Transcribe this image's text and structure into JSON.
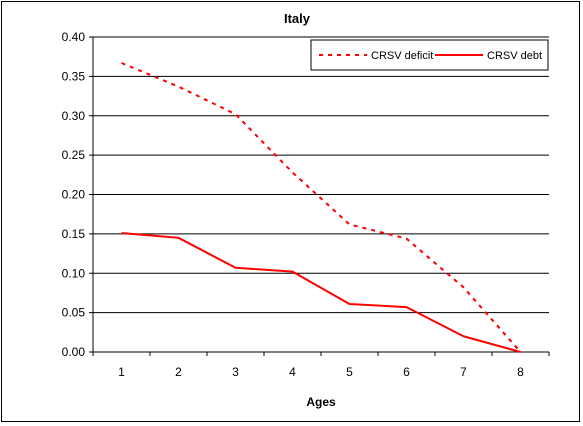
{
  "chart_data": {
    "type": "line",
    "title": "Italy",
    "xlabel": "Ages",
    "ylabel": "",
    "categories": [
      "1",
      "2",
      "3",
      "4",
      "5",
      "6",
      "7",
      "8"
    ],
    "ylim": [
      0,
      0.4
    ],
    "yticks": [
      "0.00",
      "0.05",
      "0.10",
      "0.15",
      "0.20",
      "0.25",
      "0.30",
      "0.35",
      "0.40"
    ],
    "grid": true,
    "legend_position": "top-right",
    "series": [
      {
        "name": "CRSV deficit",
        "style": "dashed",
        "color": "#ff0000",
        "values": [
          0.367,
          0.337,
          0.302,
          0.228,
          0.162,
          0.144,
          0.082,
          0.0
        ]
      },
      {
        "name": "CRSV debt",
        "style": "solid",
        "color": "#ff0000",
        "values": [
          0.151,
          0.145,
          0.107,
          0.102,
          0.061,
          0.057,
          0.02,
          0.0
        ]
      }
    ]
  }
}
